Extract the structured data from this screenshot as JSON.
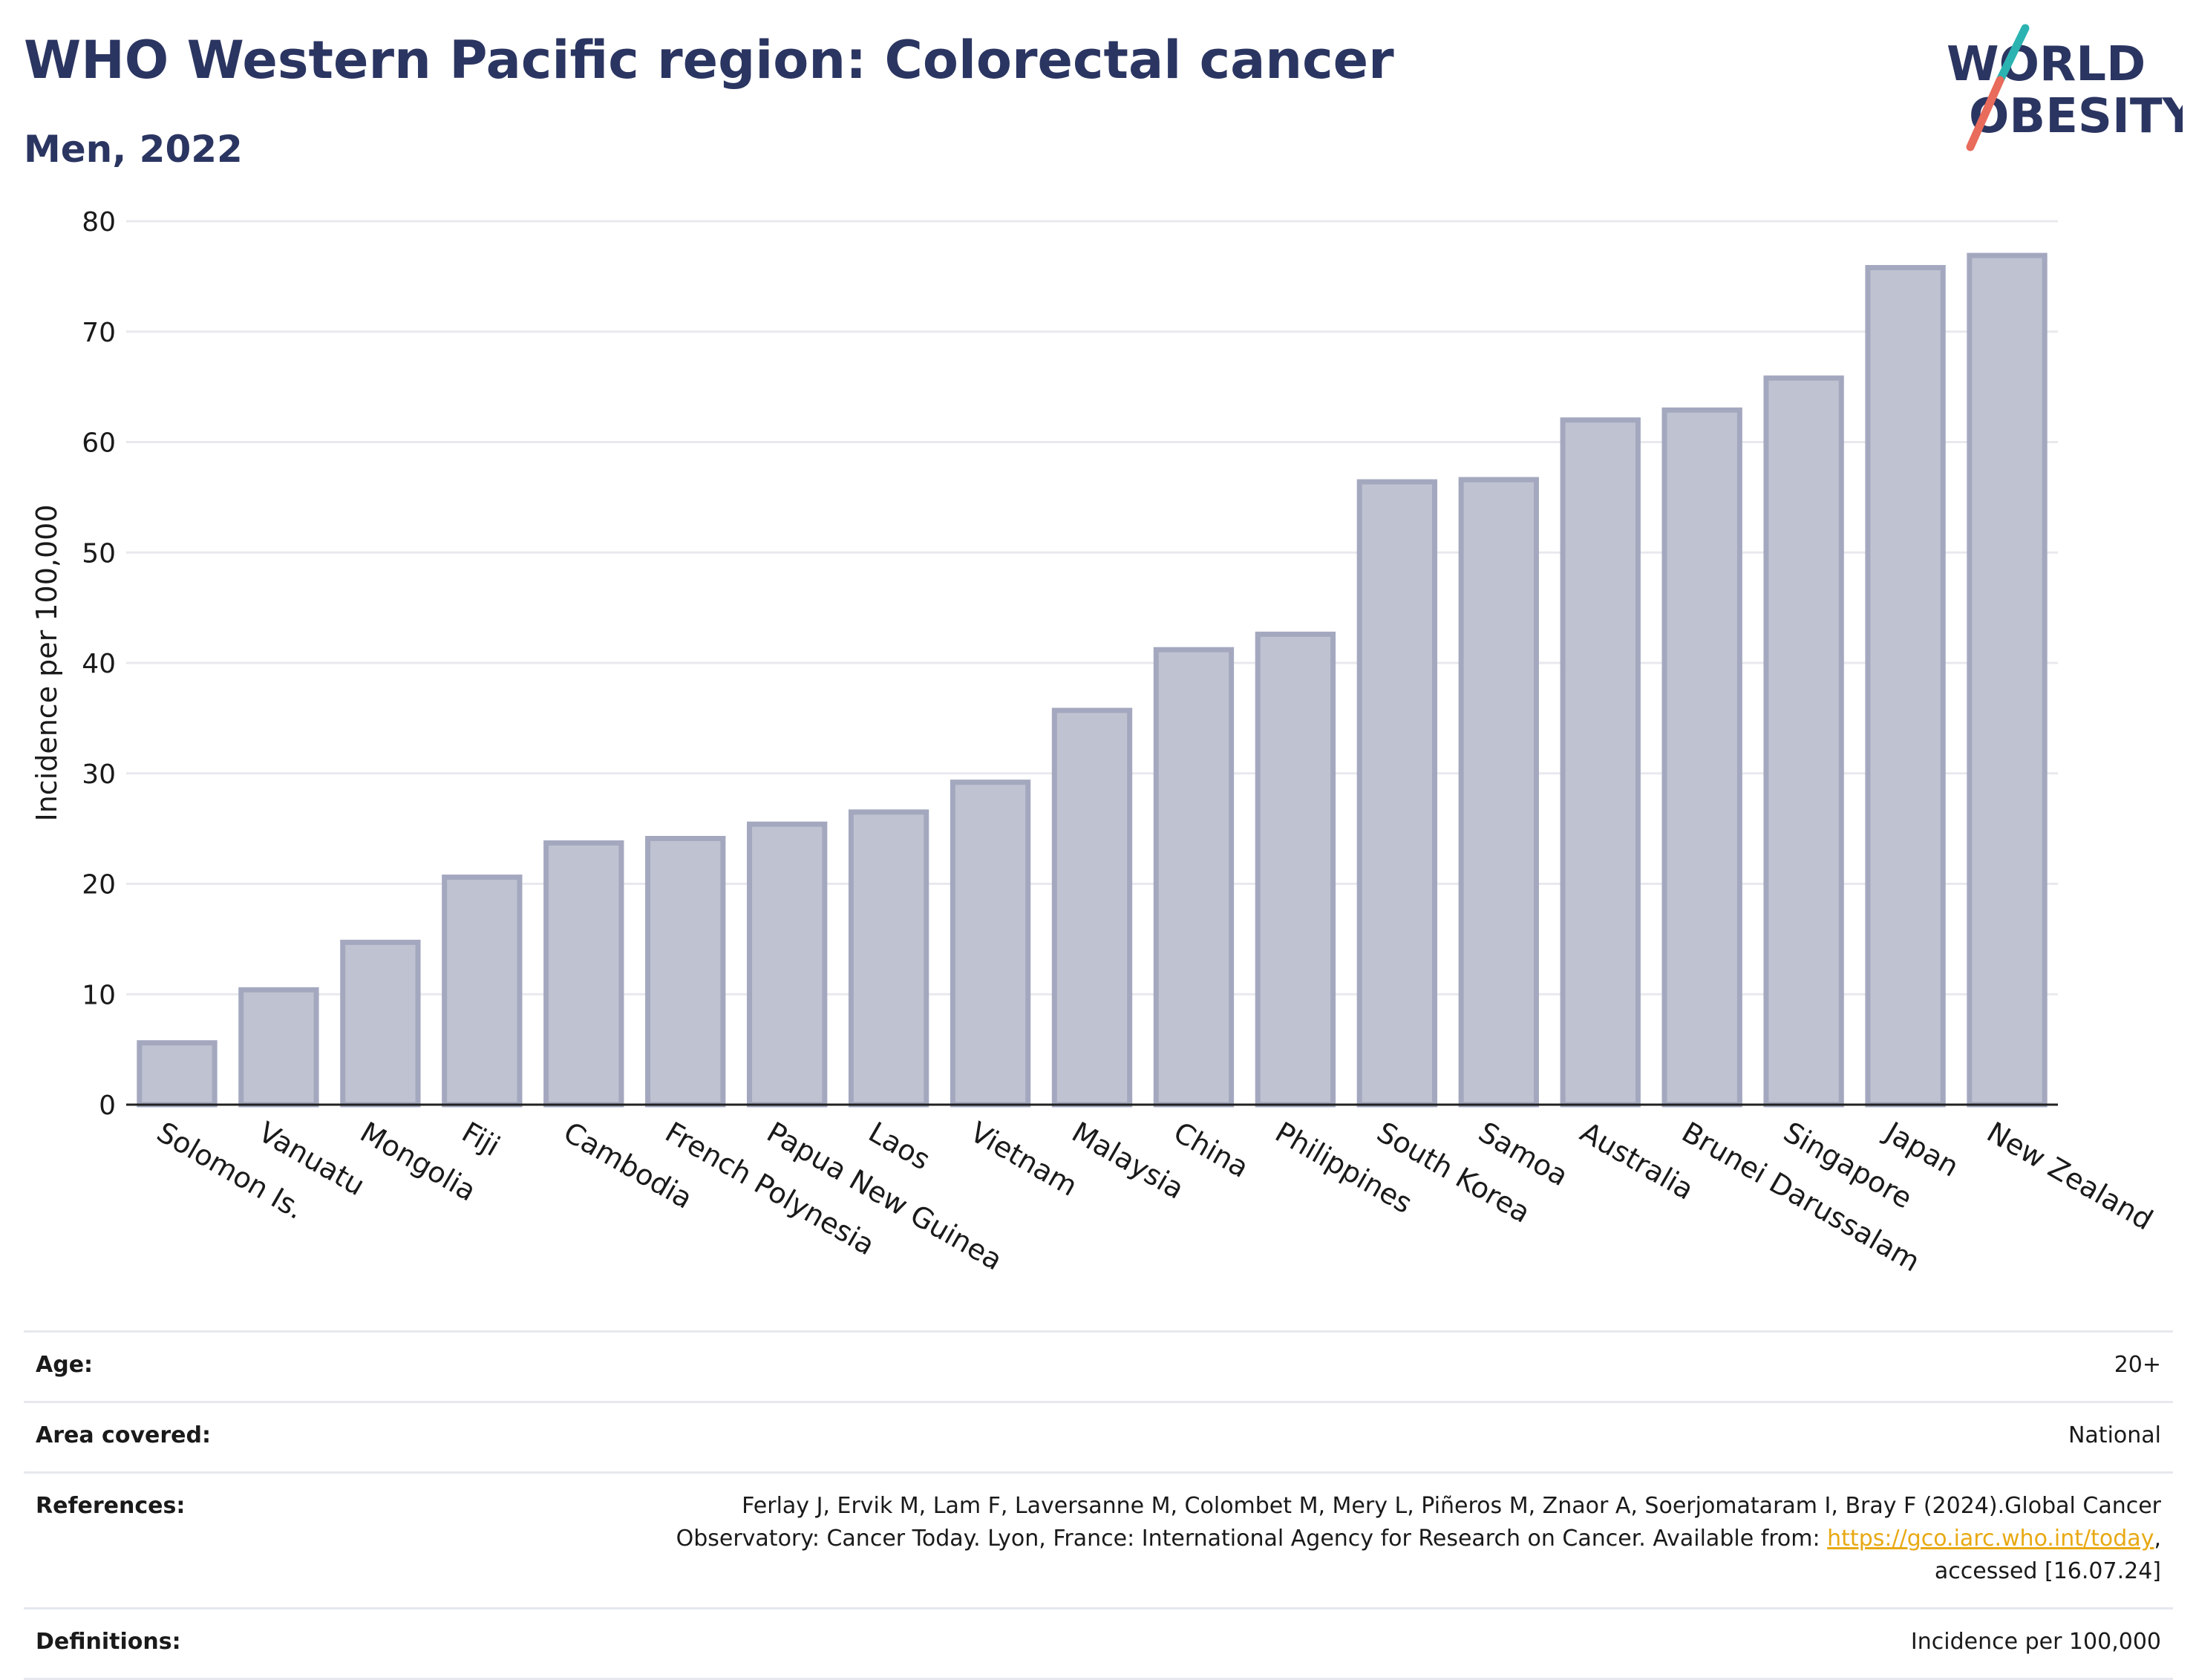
{
  "header": {
    "title": "WHO Western Pacific region: Colorectal cancer",
    "subtitle": "Men, 2022"
  },
  "logo": {
    "line1": "WORLD",
    "line2": "OBESITY",
    "colors": {
      "text": "#2b3561",
      "slash_teal": "#2bb3b1",
      "slash_coral": "#e96b5b"
    }
  },
  "chart_data": {
    "type": "bar",
    "title": "WHO Western Pacific region: Colorectal cancer",
    "subtitle": "Men, 2022",
    "xlabel": "",
    "ylabel": "Incidence per 100,000",
    "ylim": [
      0,
      80
    ],
    "yticks": [
      0,
      10,
      20,
      30,
      40,
      50,
      60,
      70,
      80
    ],
    "grid": true,
    "legend": "none",
    "bar_color": "#bfc2d0",
    "bar_stroke": "#a4a8bf",
    "categories": [
      "Solomon Is.",
      "Vanuatu",
      "Mongolia",
      "Fiji",
      "Cambodia",
      "French Polynesia",
      "Papua New Guinea",
      "Laos",
      "Vietnam",
      "Malaysia",
      "China",
      "Philippines",
      "South Korea",
      "Samoa",
      "Australia",
      "Brunei Darussalam",
      "Singapore",
      "Japan",
      "New Zealand"
    ],
    "values": [
      5.6,
      10.4,
      14.7,
      20.6,
      23.7,
      24.1,
      25.4,
      26.5,
      29.2,
      35.7,
      41.2,
      42.6,
      56.4,
      56.6,
      62.0,
      62.9,
      65.8,
      75.8,
      76.9
    ]
  },
  "info": {
    "age_label": "Age:",
    "age_value": "20+",
    "area_label": "Area covered:",
    "area_value": "National",
    "references_label": "References:",
    "references_line1": "Ferlay J, Ervik M, Lam F, Laversanne M, Colombet M, Mery L, Piñeros M, Znaor A, Soerjomataram I, Bray F (2024).Global Cancer",
    "references_line2": "Observatory: Cancer Today. Lyon, France: International Agency for Research on Cancer. Available from: ",
    "references_link": "https://gco.iarc.who.int/today",
    "references_line2_end": ",",
    "references_line3": "accessed [16.07.24]",
    "definitions_label": "Definitions:",
    "definitions_value": "Incidence per 100,000"
  }
}
